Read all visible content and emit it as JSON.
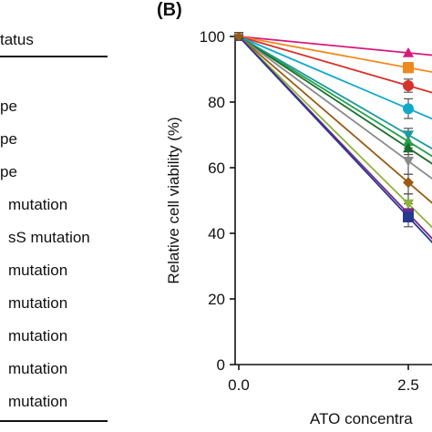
{
  "left_table": {
    "header": "tatus",
    "rows": [
      "pe",
      "pe",
      "pe",
      "mutation",
      "sS mutation",
      "mutation",
      "mutation",
      "mutation",
      "mutation",
      "mutation"
    ]
  },
  "panel_label": "(B)",
  "chart_data": {
    "type": "line",
    "ylabel": "Relative cell viability (%)",
    "xlabel": "ATO concentra",
    "ylim": [
      0,
      100
    ],
    "xlim": [
      0,
      2.5
    ],
    "x": [
      0,
      2.5
    ],
    "x_tick_labels": [
      "0.0",
      "2.5"
    ],
    "y_ticks": [
      0,
      20,
      40,
      60,
      80,
      100
    ],
    "series": [
      {
        "values": [
          100,
          95
        ],
        "color": "#d6197c",
        "marker": "triangle-up"
      },
      {
        "values": [
          100,
          90.5
        ],
        "color": "#f08a1c",
        "marker": "square"
      },
      {
        "values": [
          100,
          85
        ],
        "color": "#d7322a",
        "marker": "circle"
      },
      {
        "values": [
          100,
          78
        ],
        "color": "#12a9c9",
        "marker": "circle"
      },
      {
        "values": [
          100,
          70
        ],
        "color": "#1e9aa0",
        "marker": "triangle-down"
      },
      {
        "values": [
          100,
          68
        ],
        "color": "#25a04a",
        "marker": "triangle-up"
      },
      {
        "values": [
          100,
          66
        ],
        "color": "#1b6e2a",
        "marker": "triangle-up"
      },
      {
        "values": [
          100,
          62
        ],
        "color": "#8a8a8a",
        "marker": "triangle-down"
      },
      {
        "values": [
          100,
          55.5
        ],
        "color": "#9a5a12",
        "marker": "diamond"
      },
      {
        "values": [
          100,
          49
        ],
        "color": "#8fb23a",
        "marker": "triangle-down"
      },
      {
        "values": [
          100,
          46
        ],
        "color": "#6e2a8a",
        "marker": "square"
      },
      {
        "values": [
          100,
          45
        ],
        "color": "#28388f",
        "marker": "square"
      }
    ],
    "grid": false
  }
}
